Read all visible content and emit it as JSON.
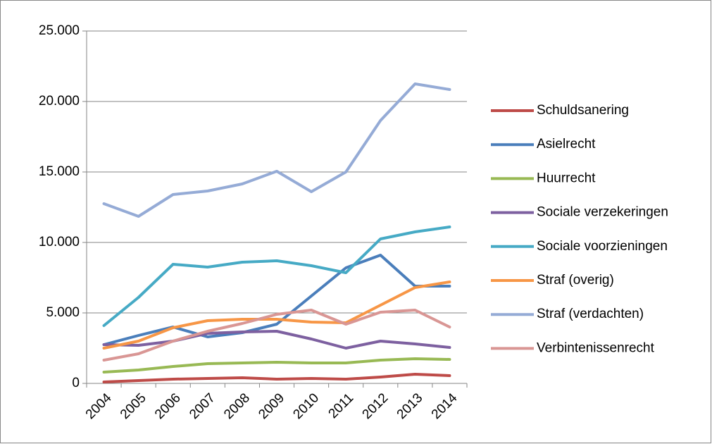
{
  "chart_data": {
    "type": "line",
    "categories": [
      "2004",
      "2005",
      "2006",
      "2007",
      "2008",
      "2009",
      "2010",
      "2011",
      "2012",
      "2013",
      "2014"
    ],
    "series": [
      {
        "name": "Schuldsanering",
        "color": "#be4b48",
        "values": [
          100,
          200,
          300,
          350,
          400,
          300,
          350,
          300,
          450,
          650,
          550
        ]
      },
      {
        "name": "Asielrecht",
        "color": "#4a7ebb",
        "values": [
          2750,
          3400,
          4000,
          3300,
          3600,
          4200,
          6200,
          8200,
          9100,
          6900,
          6900
        ]
      },
      {
        "name": "Huurrecht",
        "color": "#98b954",
        "values": [
          800,
          950,
          1200,
          1400,
          1450,
          1500,
          1450,
          1450,
          1650,
          1750,
          1700
        ]
      },
      {
        "name": "Sociale verzekeringen",
        "color": "#7d60a0",
        "values": [
          2750,
          2700,
          3000,
          3550,
          3650,
          3700,
          3150,
          2500,
          3000,
          2800,
          2550
        ]
      },
      {
        "name": "Sociale voorzieningen",
        "color": "#46aac5",
        "values": [
          4100,
          6100,
          8450,
          8250,
          8600,
          8700,
          8350,
          7850,
          10250,
          10750,
          11100
        ]
      },
      {
        "name": "Straf (overig)",
        "color": "#f79646",
        "values": [
          2500,
          3000,
          3950,
          4450,
          4550,
          4550,
          4350,
          4300,
          5550,
          6800,
          7200
        ]
      },
      {
        "name": "Straf (verdachten)",
        "color": "#95abd6",
        "values": [
          12750,
          11850,
          13400,
          13650,
          14150,
          15050,
          13600,
          15000,
          18650,
          21250,
          20850
        ]
      },
      {
        "name": "Verbintenissenrecht",
        "color": "#d99694",
        "values": [
          1650,
          2100,
          3000,
          3700,
          4250,
          4900,
          5200,
          4200,
          5050,
          5200,
          4000
        ]
      }
    ],
    "ylim": [
      0,
      25000
    ],
    "yticks": [
      0,
      {
        "value": 5000,
        "label": "5.000"
      },
      {
        "value": 10000,
        "label": "10.000"
      },
      {
        "value": 15000,
        "label": "15.000"
      },
      {
        "value": 20000,
        "label": "20.000"
      },
      {
        "value": 25000,
        "label": "25.000"
      }
    ],
    "grid": true,
    "legend": "right"
  }
}
